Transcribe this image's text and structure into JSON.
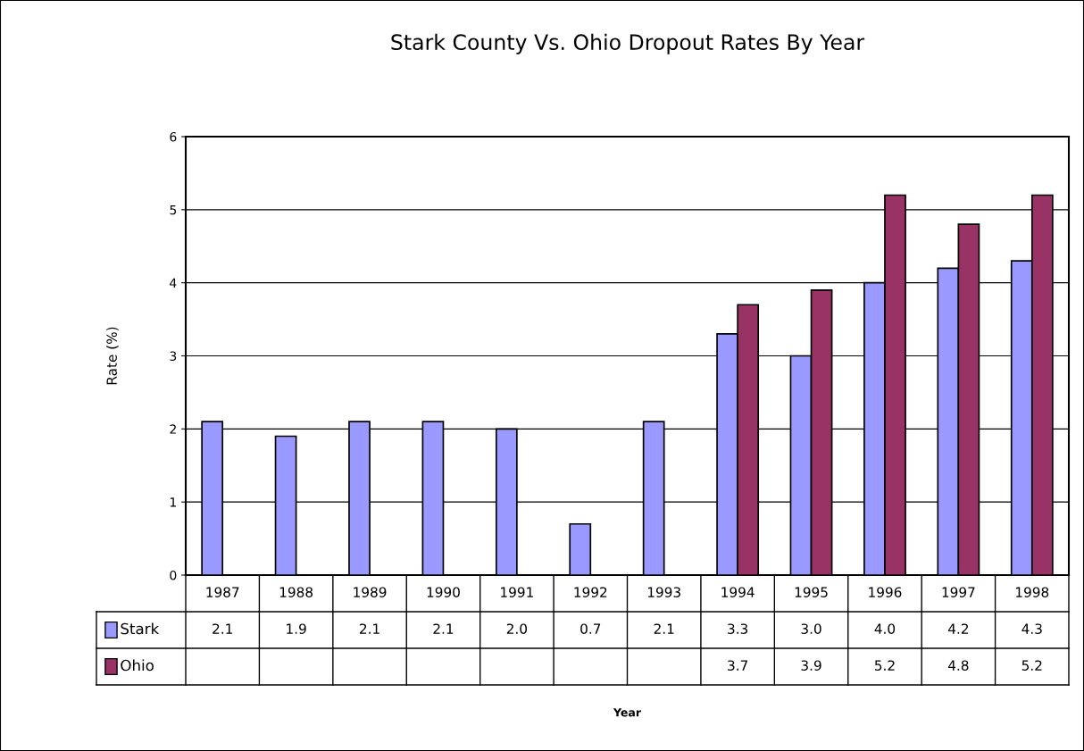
{
  "chart_data": {
    "type": "bar",
    "title": "Stark County Vs. Ohio Dropout Rates By Year",
    "annotations": [
      "Year"
    ],
    "ylabel": "Rate (%)",
    "categories": [
      "1987",
      "1988",
      "1989",
      "1990",
      "1991",
      "1992",
      "1993",
      "1994",
      "1995",
      "1996",
      "1997",
      "1998"
    ],
    "series": [
      {
        "name": "Stark",
        "color": "#9999ff",
        "values": [
          2.1,
          1.9,
          2.1,
          2.1,
          2.0,
          0.7,
          2.1,
          3.3,
          3.0,
          4.0,
          4.2,
          4.3
        ],
        "value_labels": [
          "2.1",
          "1.9",
          "2.1",
          "2.1",
          "2.0",
          "0.7",
          "2.1",
          "3.3",
          "3.0",
          "4.0",
          "4.2",
          "4.3"
        ]
      },
      {
        "name": "Ohio",
        "color": "#993366",
        "values": [
          null,
          null,
          null,
          null,
          null,
          null,
          null,
          3.7,
          3.9,
          5.2,
          4.8,
          5.2
        ],
        "value_labels": [
          null,
          null,
          null,
          null,
          null,
          null,
          null,
          "3.7",
          "3.9",
          "5.2",
          "4.8",
          "5.2"
        ]
      }
    ],
    "ylim": [
      0,
      6
    ],
    "yticks": [
      0,
      1,
      2,
      3,
      4,
      5,
      6
    ],
    "grid": "y",
    "legend": "bottom"
  }
}
